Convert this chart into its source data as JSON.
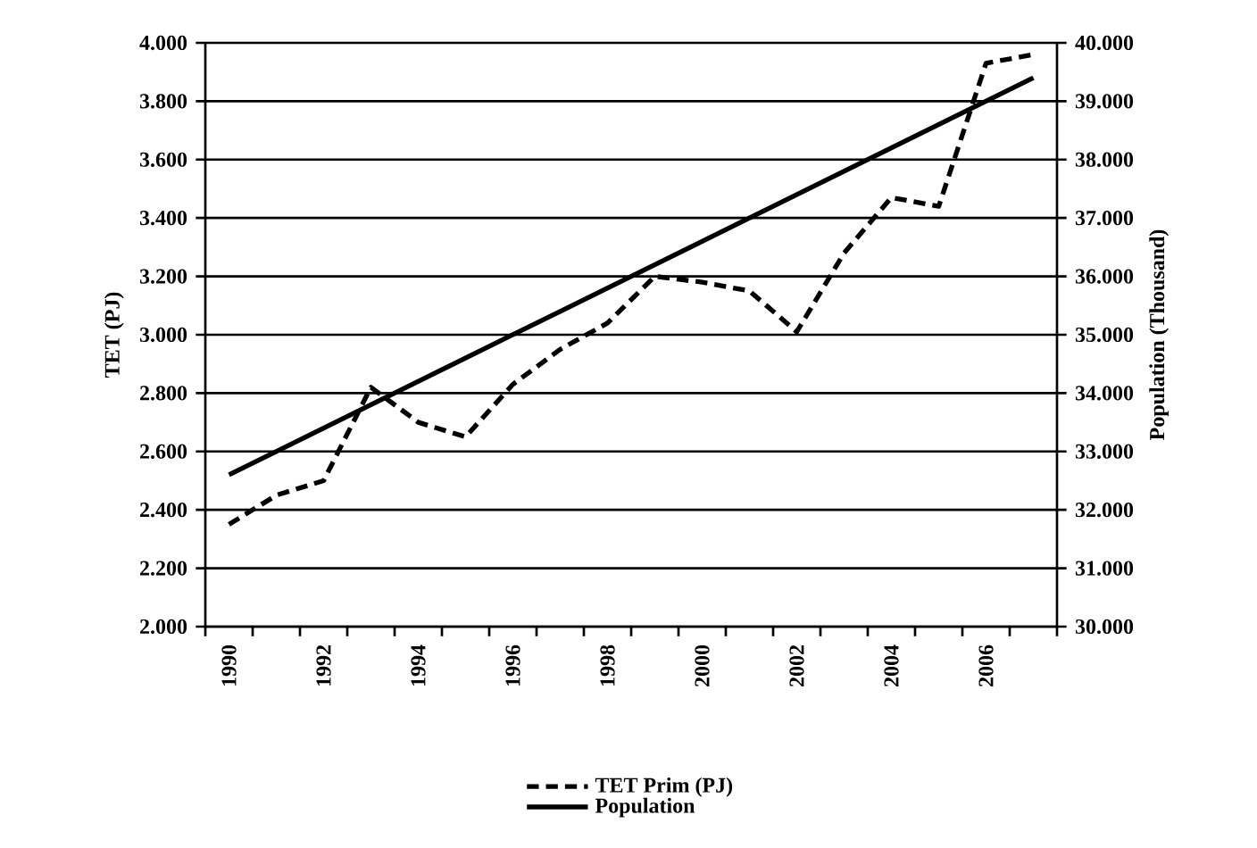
{
  "chart_data": {
    "type": "line",
    "ylabel": "TET  (PJ)",
    "y2label": "Population (Thousand)",
    "categories": [
      "1990",
      null,
      "1992",
      null,
      "1994",
      null,
      "1996",
      null,
      "1998",
      null,
      "2000",
      null,
      "2002",
      null,
      "2004",
      null,
      "2006",
      null
    ],
    "series": [
      {
        "name": "TET Prim (PJ)",
        "color": "#000000",
        "line_style": "dashed",
        "values": [
          2350,
          2450,
          2500,
          2820,
          2700,
          2650,
          2830,
          2950,
          3040,
          3200,
          3180,
          3150,
          3010,
          3280,
          3470,
          3440,
          3930,
          3960
        ]
      },
      {
        "name": "Population",
        "color": "#000000",
        "line_style": "solid",
        "axis": "y2",
        "values": [
          32600,
          33000,
          33400,
          33800,
          34200,
          34600,
          35000,
          35400,
          35800,
          36200,
          36600,
          37000,
          37400,
          37800,
          38200,
          38600,
          39000,
          39400
        ]
      }
    ],
    "ylim": [
      2000,
      4000
    ],
    "yticks": [
      {
        "value": 2000,
        "label": "2.000"
      },
      {
        "value": 2200,
        "label": "2.200"
      },
      {
        "value": 2400,
        "label": "2.400"
      },
      {
        "value": 2600,
        "label": "2.600"
      },
      {
        "value": 2800,
        "label": "2.800"
      },
      {
        "value": 3000,
        "label": "3.000"
      },
      {
        "value": 3200,
        "label": "3.200"
      },
      {
        "value": 3400,
        "label": "3.400"
      },
      {
        "value": 3600,
        "label": "3.600"
      },
      {
        "value": 3800,
        "label": "3.800"
      },
      {
        "value": 4000,
        "label": "4.000"
      }
    ],
    "y2lim": [
      30000,
      40000
    ],
    "y2ticks": [
      {
        "value": 30000,
        "label": "30.000"
      },
      {
        "value": 31000,
        "label": "31.000"
      },
      {
        "value": 32000,
        "label": "32.000"
      },
      {
        "value": 33000,
        "label": "33.000"
      },
      {
        "value": 34000,
        "label": "34.000"
      },
      {
        "value": 35000,
        "label": "35.000"
      },
      {
        "value": 36000,
        "label": "36.000"
      },
      {
        "value": 37000,
        "label": "37.000"
      },
      {
        "value": 38000,
        "label": "38.000"
      },
      {
        "value": 39000,
        "label": "39.000"
      },
      {
        "value": 40000,
        "label": "40.000"
      }
    ],
    "grid": "y",
    "legend": "bottom"
  }
}
